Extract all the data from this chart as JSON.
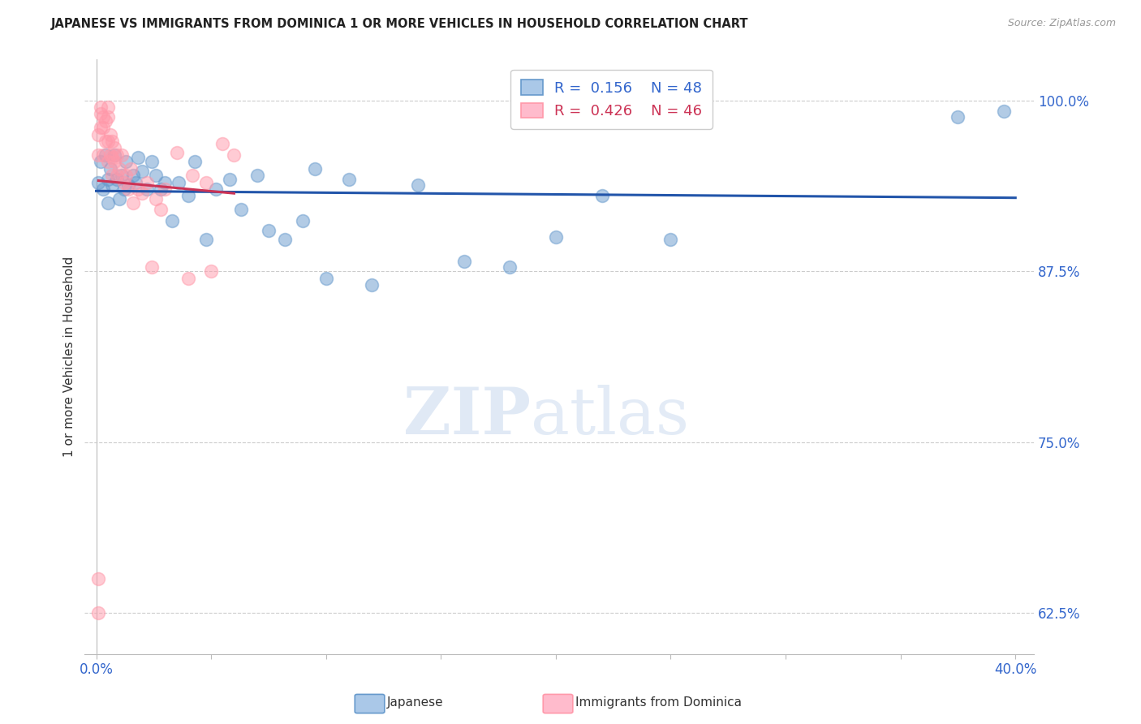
{
  "title": "JAPANESE VS IMMIGRANTS FROM DOMINICA 1 OR MORE VEHICLES IN HOUSEHOLD CORRELATION CHART",
  "source": "Source: ZipAtlas.com",
  "ylabel": "1 or more Vehicles in Household",
  "y_ticks": [
    0.625,
    0.75,
    0.875,
    1.0
  ],
  "y_tick_labels": [
    "62.5%",
    "75.0%",
    "87.5%",
    "100.0%"
  ],
  "legend_blue_r": "0.156",
  "legend_blue_n": "48",
  "legend_pink_r": "0.426",
  "legend_pink_n": "46",
  "legend_label_blue": "Japanese",
  "legend_label_pink": "Immigrants from Dominica",
  "blue_color": "#6699CC",
  "pink_color": "#FF99AA",
  "line_blue_color": "#2255AA",
  "line_pink_color": "#CC3355",
  "watermark_zip": "ZIP",
  "watermark_atlas": "atlas",
  "japanese_x": [
    0.001,
    0.002,
    0.003,
    0.004,
    0.005,
    0.005,
    0.006,
    0.007,
    0.008,
    0.009,
    0.01,
    0.011,
    0.012,
    0.013,
    0.014,
    0.016,
    0.017,
    0.018,
    0.02,
    0.022,
    0.024,
    0.026,
    0.028,
    0.03,
    0.033,
    0.036,
    0.04,
    0.043,
    0.048,
    0.052,
    0.058,
    0.063,
    0.07,
    0.075,
    0.082,
    0.09,
    0.095,
    0.1,
    0.11,
    0.12,
    0.14,
    0.16,
    0.18,
    0.2,
    0.22,
    0.25,
    0.375,
    0.395
  ],
  "japanese_y": [
    0.94,
    0.955,
    0.935,
    0.96,
    0.925,
    0.942,
    0.95,
    0.938,
    0.96,
    0.942,
    0.928,
    0.945,
    0.935,
    0.955,
    0.938,
    0.945,
    0.94,
    0.958,
    0.948,
    0.935,
    0.955,
    0.945,
    0.935,
    0.94,
    0.912,
    0.94,
    0.93,
    0.955,
    0.898,
    0.935,
    0.942,
    0.92,
    0.945,
    0.905,
    0.898,
    0.912,
    0.95,
    0.87,
    0.942,
    0.865,
    0.938,
    0.882,
    0.878,
    0.9,
    0.93,
    0.898,
    0.988,
    0.992
  ],
  "dominica_x": [
    0.001,
    0.001,
    0.001,
    0.001,
    0.002,
    0.002,
    0.002,
    0.003,
    0.003,
    0.003,
    0.004,
    0.004,
    0.005,
    0.005,
    0.005,
    0.005,
    0.006,
    0.006,
    0.007,
    0.007,
    0.007,
    0.008,
    0.008,
    0.009,
    0.009,
    0.01,
    0.011,
    0.012,
    0.013,
    0.014,
    0.015,
    0.016,
    0.018,
    0.02,
    0.022,
    0.024,
    0.026,
    0.028,
    0.03,
    0.035,
    0.04,
    0.042,
    0.048,
    0.05,
    0.055,
    0.06
  ],
  "dominica_y": [
    0.625,
    0.65,
    0.96,
    0.975,
    0.98,
    0.99,
    0.995,
    0.98,
    0.96,
    0.988,
    0.97,
    0.985,
    0.955,
    0.97,
    0.988,
    0.995,
    0.96,
    0.975,
    0.945,
    0.958,
    0.97,
    0.955,
    0.965,
    0.945,
    0.96,
    0.95,
    0.96,
    0.94,
    0.945,
    0.935,
    0.95,
    0.925,
    0.935,
    0.932,
    0.94,
    0.878,
    0.928,
    0.92,
    0.935,
    0.962,
    0.87,
    0.945,
    0.94,
    0.875,
    0.968,
    0.96
  ]
}
